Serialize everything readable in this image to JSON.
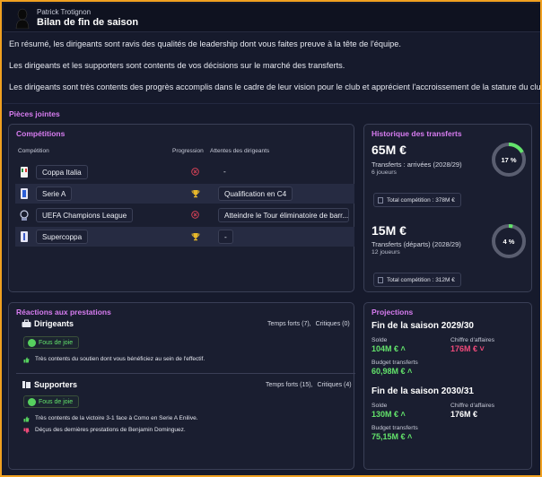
{
  "header": {
    "subtitle": "Patrick Trotignon",
    "title": "Bilan de fin de saison"
  },
  "summary": [
    "En résumé, les dirigeants sont ravis des qualités de leadership dont vous faites preuve à la tête de l'équipe.",
    "Les dirigeants et les supporters sont contents de vos décisions sur le marché des transferts.",
    "Les dirigeants sont très contents des progrès accomplis dans le cadre de leur vision pour le club et apprécient l'accroissement de la stature du club."
  ],
  "attachments_label": "Pièces jointes",
  "competitions": {
    "title": "Compétitions",
    "headers": {
      "competition": "Compétition",
      "progression": "Progression",
      "expectations": "Attentes des dirigeants"
    },
    "rows": [
      {
        "name": "Coppa Italia",
        "progress_icon": "x-circle-icon",
        "expectation": "-"
      },
      {
        "name": "Serie A",
        "progress_icon": "trophy-icon",
        "expectation": "Qualification en C4"
      },
      {
        "name": "UEFA Champions League",
        "progress_icon": "x-circle-icon",
        "expectation": "Atteindre le Tour éliminatoire de barr..."
      },
      {
        "name": "Supercoppa",
        "progress_icon": "trophy-icon",
        "expectation": "-"
      }
    ]
  },
  "transfers": {
    "title": "Historique des transferts",
    "arrivals": {
      "amount": "65M €",
      "label": "Transferts : arrivées (2028/29)",
      "players": "6 joueurs",
      "percent_label": "17 %",
      "percent": 17,
      "total": "Total compétition : 378M €"
    },
    "departures": {
      "amount": "15M €",
      "label": "Transferts (départs) (2028/29)",
      "players": "12 joueurs",
      "percent_label": "4 %",
      "percent": 4,
      "total": "Total compétition : 312M €"
    }
  },
  "reactions": {
    "title": "Réactions aux prestations",
    "directors": {
      "name": "Dirigeants",
      "highlights_label": "Temps forts (7),",
      "critics_label": "Critiques (0)",
      "mood": "Fous de joie",
      "items": [
        "Très contents du soutien dont vous bénéficiez au sein de l'effectif."
      ]
    },
    "supporters": {
      "name": "Supporters",
      "highlights_label": "Temps forts (15),",
      "critics_label": "Critiques (4)",
      "mood": "Fous de joie",
      "items": [
        "Très contents de la victoire 3-1 face à Como en Serie A Enilive.",
        "Déçus des dernières prestations de Benjamin Dominguez."
      ]
    }
  },
  "projections": {
    "title": "Projections",
    "seasons": [
      {
        "title": "Fin de la saison 2029/30",
        "balance_label": "Solde",
        "balance": "104M €",
        "revenue_label": "Chiffre d'affaires",
        "revenue": "176M €",
        "budget_label": "Budget transferts",
        "budget": "60,98M €"
      },
      {
        "title": "Fin de la saison 2030/31",
        "balance_label": "Solde",
        "balance": "130M €",
        "revenue_label": "Chiffre d'affaires",
        "revenue": "176M €",
        "budget_label": "Budget transferts",
        "budget": "75,15M €"
      }
    ]
  },
  "colors": {
    "accent_purple": "#d77cf0",
    "positive": "#63e36b",
    "negative": "#f04a7a",
    "frame": "#f0a020"
  }
}
